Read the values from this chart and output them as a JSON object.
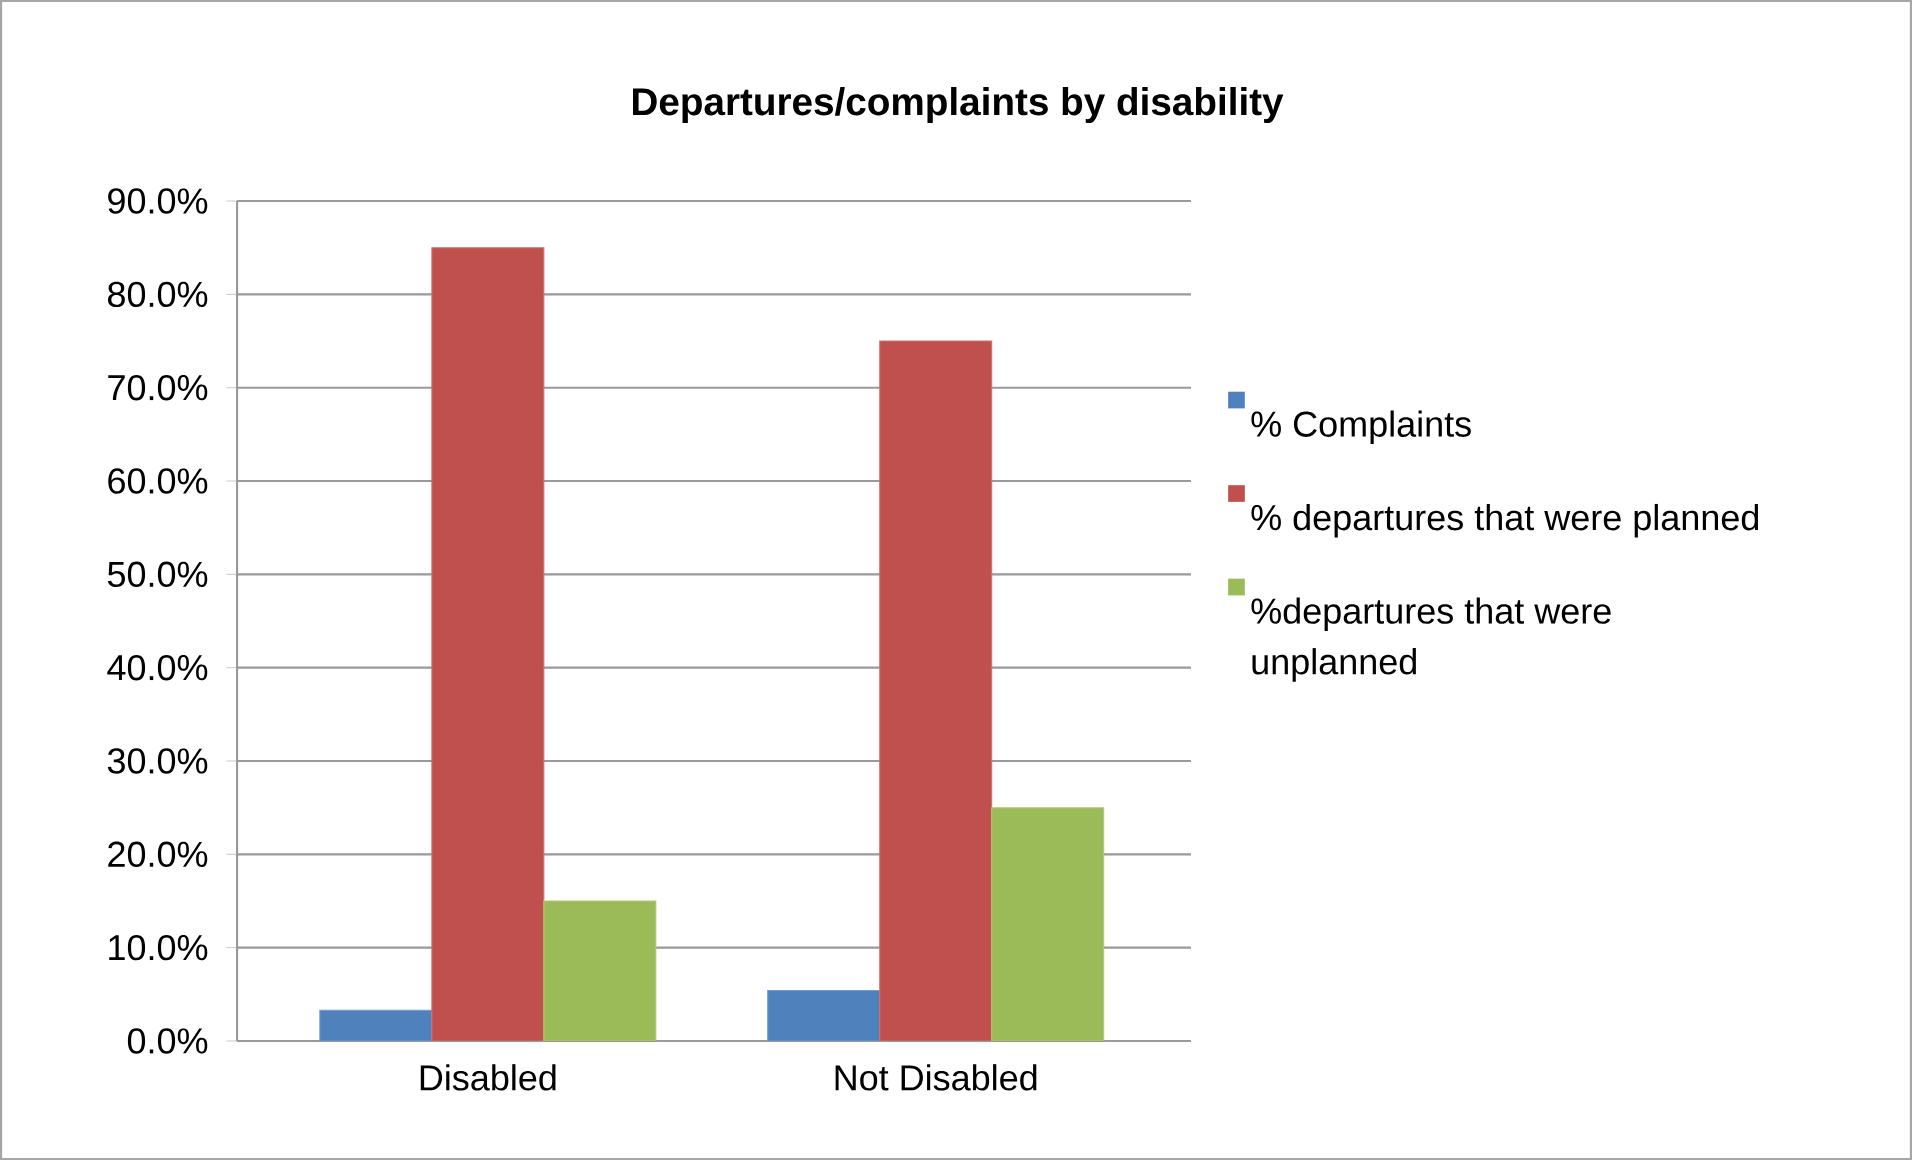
{
  "chart_data": {
    "type": "bar",
    "title": "Departures/complaints by disability",
    "categories": [
      "Disabled",
      "Not Disabled"
    ],
    "series": [
      {
        "name": "% Complaints",
        "color": "#4f81bd",
        "values": [
          3.3,
          5.4
        ]
      },
      {
        "name": "% departures that were planned",
        "color": "#c0504d",
        "values": [
          85,
          75
        ]
      },
      {
        "name": "%departures that were unplanned",
        "color": "#9bbb59",
        "values": [
          15,
          25
        ]
      }
    ],
    "ylim": [
      0,
      90
    ],
    "yticks": [
      {
        "value": 0,
        "label": "0.0%"
      },
      {
        "value": 10,
        "label": "10.0%"
      },
      {
        "value": 20,
        "label": "20.0%"
      },
      {
        "value": 30,
        "label": "30.0%"
      },
      {
        "value": 40,
        "label": "40.0%"
      },
      {
        "value": 50,
        "label": "50.0%"
      },
      {
        "value": 60,
        "label": "60.0%"
      },
      {
        "value": 70,
        "label": "70.0%"
      },
      {
        "value": 80,
        "label": "80.0%"
      },
      {
        "value": 90,
        "label": "90.0%"
      }
    ],
    "grid": "y",
    "legend": "right"
  }
}
